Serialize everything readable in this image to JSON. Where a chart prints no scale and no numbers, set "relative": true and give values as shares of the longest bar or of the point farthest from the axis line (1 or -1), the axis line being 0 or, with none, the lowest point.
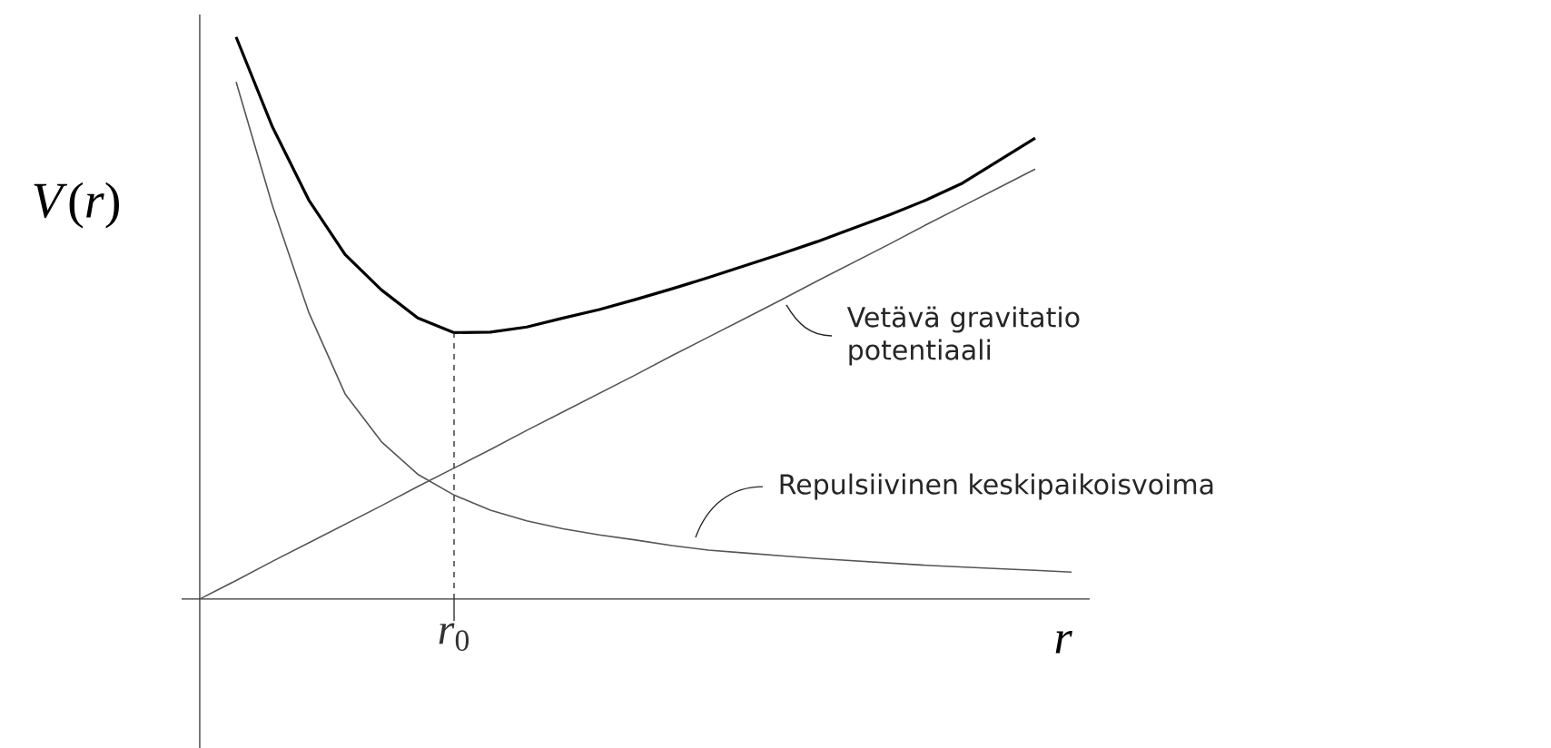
{
  "chart_data": {
    "type": "line",
    "relative": true,
    "xlabel": "*r*",
    "ylabel": "*V*(*r*)",
    "categories": [
      null,
      null,
      null,
      null,
      null,
      null,
      null,
      null,
      null,
      null,
      null,
      null,
      null,
      null,
      null,
      null,
      null,
      null,
      null,
      null,
      null,
      null,
      null,
      null,
      null
    ],
    "series": [
      {
        "color": "#000000",
        "values": [
          null,
          1.0,
          0.84,
          0.71,
          0.613,
          0.55,
          0.5,
          0.474,
          0.475,
          0.484,
          0.5,
          0.515,
          0.533,
          0.552,
          0.572,
          0.593,
          0.614,
          0.636,
          0.66,
          0.684,
          0.71,
          0.74,
          0.78,
          0.82,
          null
        ]
      },
      {
        "color": "#555555",
        "values": [
          null,
          0.92,
          0.7,
          0.51,
          0.365,
          0.28,
          0.222,
          0.185,
          0.158,
          0.139,
          0.125,
          0.114,
          0.105,
          0.095,
          0.087,
          0.082,
          0.077,
          0.072,
          0.068,
          0.064,
          0.06,
          0.057,
          0.054,
          0.051,
          0.048
        ]
      },
      {
        "color": "#555555",
        "values": [
          0,
          0.033,
          0.067,
          0.1,
          0.133,
          0.166,
          0.2,
          0.233,
          0.266,
          0.3,
          0.333,
          0.366,
          0.399,
          0.433,
          0.466,
          0.499,
          0.532,
          0.566,
          0.599,
          0.632,
          0.666,
          0.699,
          0.732,
          0.765,
          null
        ]
      }
    ],
    "annotations": [
      "Vetävä gravitatio potentiaali",
      "Repulsiivinen keskipaikoisvoima",
      "*r*$_{0}$"
    ]
  }
}
